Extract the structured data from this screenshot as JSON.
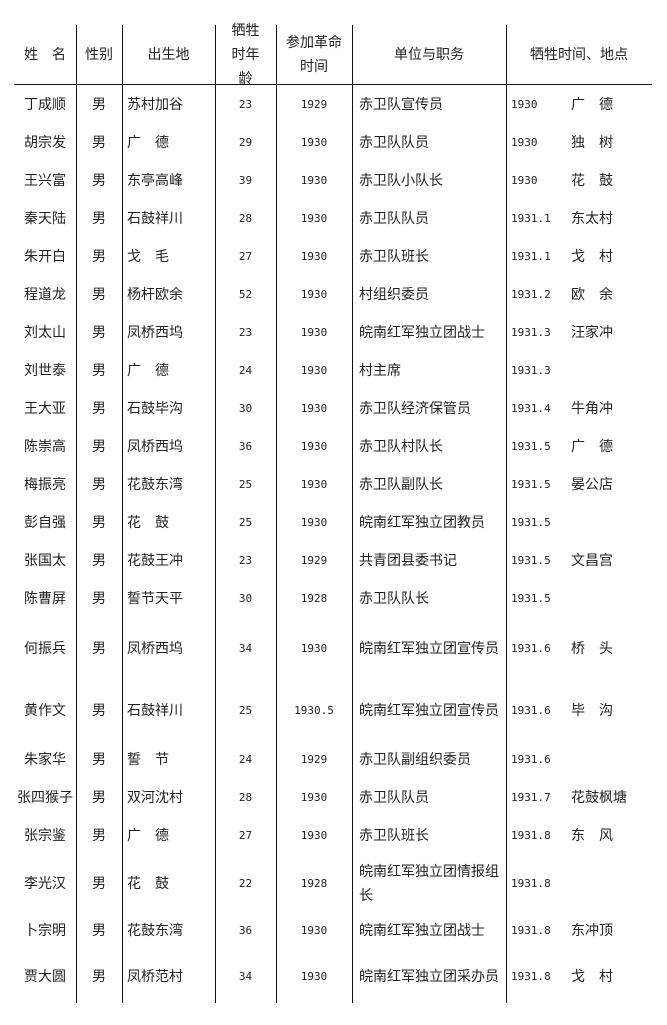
{
  "headers": [
    "姓　名",
    "性别",
    "出生地",
    "牺牲时年龄",
    "参加革命时间",
    "单位与职务",
    "牺牲时间、地点"
  ],
  "rows": [
    {
      "name": "丁成顺",
      "sex": "男",
      "birthplace": "苏村加谷",
      "age": "23",
      "joined": "1929",
      "unit": "赤卫队宣传员",
      "death_date": "1930",
      "death_place": "广　德"
    },
    {
      "name": "胡宗发",
      "sex": "男",
      "birthplace": "广　德",
      "age": "29",
      "joined": "1930",
      "unit": "赤卫队队员",
      "death_date": "1930",
      "death_place": "独　树"
    },
    {
      "name": "王兴富",
      "sex": "男",
      "birthplace": "东亭高峰",
      "age": "39",
      "joined": "1930",
      "unit": "赤卫队小队长",
      "death_date": "1930",
      "death_place": "花　鼓"
    },
    {
      "name": "秦天陆",
      "sex": "男",
      "birthplace": "石鼓祥川",
      "age": "28",
      "joined": "1930",
      "unit": "赤卫队队员",
      "death_date": "1931.1",
      "death_place": "东太村"
    },
    {
      "name": "朱开白",
      "sex": "男",
      "birthplace": "戈　毛",
      "age": "27",
      "joined": "1930",
      "unit": "赤卫队班长",
      "death_date": "1931.1",
      "death_place": "戈　村"
    },
    {
      "name": "程道龙",
      "sex": "男",
      "birthplace": "杨杆欧余",
      "age": "52",
      "joined": "1930",
      "unit": "村组织委员",
      "death_date": "1931.2",
      "death_place": "欧　余"
    },
    {
      "name": "刘太山",
      "sex": "男",
      "birthplace": "凤桥西坞",
      "age": "23",
      "joined": "1930",
      "unit": "皖南红军独立团战士",
      "death_date": "1931.3",
      "death_place": "汪家冲"
    },
    {
      "name": "刘世泰",
      "sex": "男",
      "birthplace": "广　德",
      "age": "24",
      "joined": "1930",
      "unit": "村主席",
      "death_date": "1931.3",
      "death_place": ""
    },
    {
      "name": "王大亚",
      "sex": "男",
      "birthplace": "石鼓毕沟",
      "age": "30",
      "joined": "1930",
      "unit": "赤卫队经济保管员",
      "death_date": "1931.4",
      "death_place": "牛角冲"
    },
    {
      "name": "陈崇高",
      "sex": "男",
      "birthplace": "凤桥西坞",
      "age": "36",
      "joined": "1930",
      "unit": "赤卫队村队长",
      "death_date": "1931.5",
      "death_place": "广　德"
    },
    {
      "name": "梅振亮",
      "sex": "男",
      "birthplace": "花鼓东湾",
      "age": "25",
      "joined": "1930",
      "unit": "赤卫队副队长",
      "death_date": "1931.5",
      "death_place": "晏公店"
    },
    {
      "name": "彭自强",
      "sex": "男",
      "birthplace": "花　鼓",
      "age": "25",
      "joined": "1930",
      "unit": "皖南红军独立团教员",
      "death_date": "1931.5",
      "death_place": ""
    },
    {
      "name": "张国太",
      "sex": "男",
      "birthplace": "花鼓王冲",
      "age": "23",
      "joined": "1929",
      "unit": "共青团县委书记",
      "death_date": "1931.5",
      "death_place": "文昌宫"
    },
    {
      "name": "陈曹屏",
      "sex": "男",
      "birthplace": "誓节天平",
      "age": "30",
      "joined": "1928",
      "unit": "赤卫队队长",
      "death_date": "1931.5",
      "death_place": ""
    },
    {
      "name": "何振兵",
      "sex": "男",
      "birthplace": "凤桥西坞",
      "age": "34",
      "joined": "1930",
      "unit": "皖南红军独立团宣传员",
      "death_date": "1931.6",
      "death_place": "桥　头"
    },
    {
      "name": "黄作文",
      "sex": "男",
      "birthplace": "石鼓祥川",
      "age": "25",
      "joined": "1930.5",
      "unit": "皖南红军独立团宣传员",
      "death_date": "1931.6",
      "death_place": "毕　沟"
    },
    {
      "name": "朱家华",
      "sex": "男",
      "birthplace": "誓　节",
      "age": "24",
      "joined": "1929",
      "unit": "赤卫队副组织委员",
      "death_date": "1931.6",
      "death_place": ""
    },
    {
      "name": "张四猴子",
      "sex": "男",
      "birthplace": "双河沈村",
      "age": "28",
      "joined": "1930",
      "unit": "赤卫队队员",
      "death_date": "1931.7",
      "death_place": "花鼓枫塘"
    },
    {
      "name": "张宗鉴",
      "sex": "男",
      "birthplace": "广　德",
      "age": "27",
      "joined": "1930",
      "unit": "赤卫队班长",
      "death_date": "1931.8",
      "death_place": "东　风"
    },
    {
      "name": "李光汉",
      "sex": "男",
      "birthplace": "花　鼓",
      "age": "22",
      "joined": "1928",
      "unit": "皖南红军独立团情报组长",
      "death_date": "1931.8",
      "death_place": ""
    },
    {
      "name": "卜宗明",
      "sex": "男",
      "birthplace": "花鼓东湾",
      "age": "36",
      "joined": "1930",
      "unit": "皖南红军独立团战士",
      "death_date": "1931.8",
      "death_place": "东冲顶"
    },
    {
      "name": "贾大圆",
      "sex": "男",
      "birthplace": "凤桥范村",
      "age": "34",
      "joined": "1930",
      "unit": "皖南红军独立团采办员",
      "death_date": "1931.8",
      "death_place": "戈　村"
    }
  ]
}
